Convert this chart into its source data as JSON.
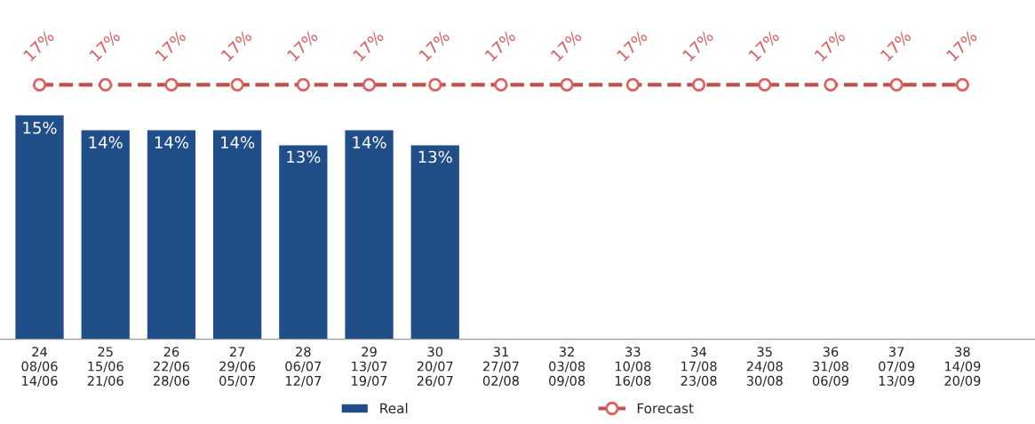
{
  "chart_data": {
    "type": "bar",
    "categories": [
      "24\n08/06\n14/06",
      "25\n15/06\n21/06",
      "26\n22/06\n28/06",
      "27\n29/06\n05/07",
      "28\n06/07\n12/07",
      "29\n13/07\n19/07",
      "30\n20/07\n26/07",
      "31\n27/07\n02/08",
      "32\n03/08\n09/08",
      "33\n10/08\n16/08",
      "34\n17/08\n23/08",
      "35\n24/08\n30/08",
      "36\n31/08\n06/09",
      "37\n07/09\n13/09",
      "38\n14/09\n20/09"
    ],
    "series": [
      {
        "name": "Real",
        "color": "#1f4e89",
        "values": [
          15,
          14,
          14,
          14,
          13,
          14,
          13,
          null,
          null,
          null,
          null,
          null,
          null,
          null,
          null
        ],
        "value_labels": [
          "15%",
          "14%",
          "14%",
          "14%",
          "13%",
          "14%",
          "13%",
          null,
          null,
          null,
          null,
          null,
          null,
          null,
          null
        ]
      },
      {
        "name": "Forecast",
        "type": "line",
        "color": "#c0504d",
        "marker": "circle",
        "line_style": "dashed",
        "values": [
          17,
          17,
          17,
          17,
          17,
          17,
          17,
          17,
          17,
          17,
          17,
          17,
          17,
          17,
          17
        ],
        "value_labels": [
          "17%",
          "17%",
          "17%",
          "17%",
          "17%",
          "17%",
          "17%",
          "17%",
          "17%",
          "17%",
          "17%",
          "17%",
          "17%",
          "17%",
          "17%"
        ]
      }
    ],
    "relative": false,
    "legend": "bottom",
    "grid": false
  }
}
